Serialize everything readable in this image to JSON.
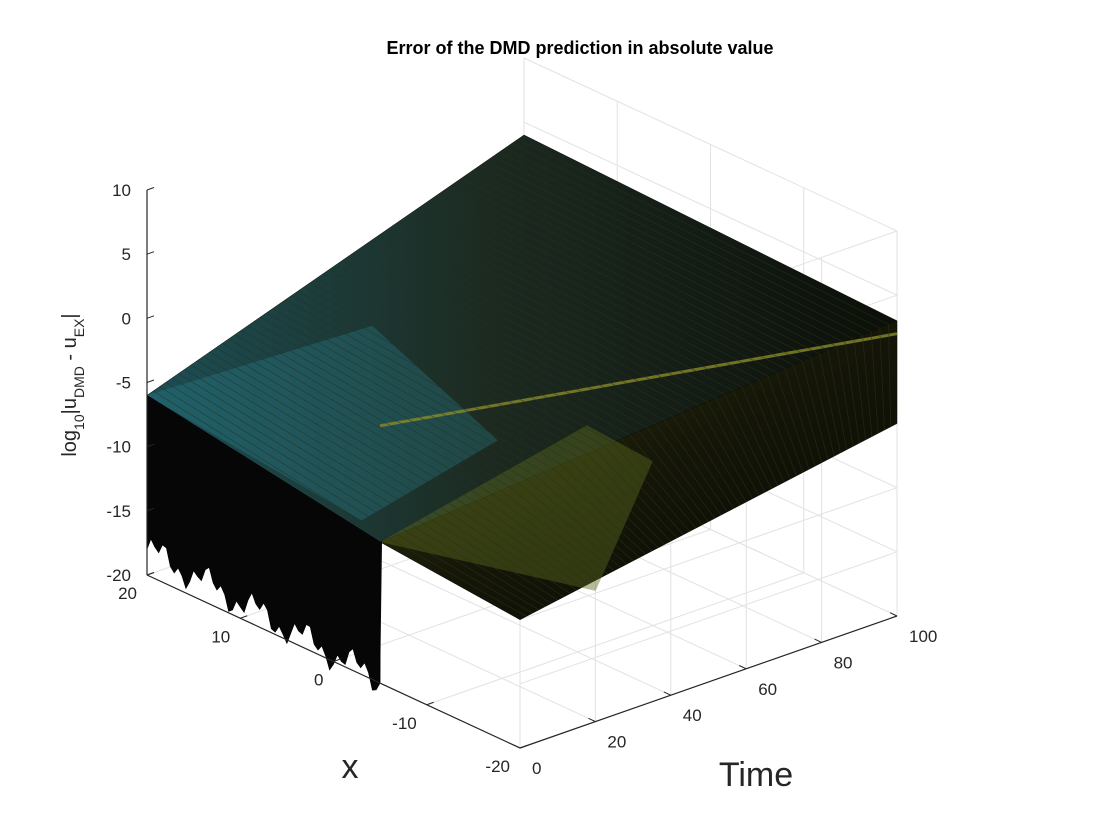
{
  "chart_data": {
    "type": "surface",
    "title": "Error of the DMD prediction in absolute value",
    "xlabel": "Time",
    "ylabel": "x",
    "zlabel": {
      "prefix": "log",
      "base": "10",
      "open": "|u",
      "sub1": "DMD",
      "mid": " - u",
      "sub2": "EX",
      "close": "|"
    },
    "time_ticks": [
      "0",
      "20",
      "40",
      "60",
      "80",
      "100"
    ],
    "x_ticks": [
      "-20",
      "-10",
      "0",
      "10",
      "20"
    ],
    "z_ticks": [
      "-20",
      "-15",
      "-10",
      "-5",
      "0",
      "5",
      "10"
    ],
    "time_range": [
      0,
      100
    ],
    "x_range": [
      -20,
      20
    ],
    "z_range": [
      -20,
      10
    ],
    "grid": true,
    "colormap": "parula",
    "surface_profile": {
      "front_edge_time": 0,
      "front_edge_log_error_top": [
        -6,
        -16
      ],
      "ridge": {
        "x_start": -5,
        "x_end": -20,
        "time_start": 0,
        "time_end": 100,
        "log_error": 3
      },
      "far_corner_log_error": 4,
      "right_corner_log_error": -5
    }
  }
}
